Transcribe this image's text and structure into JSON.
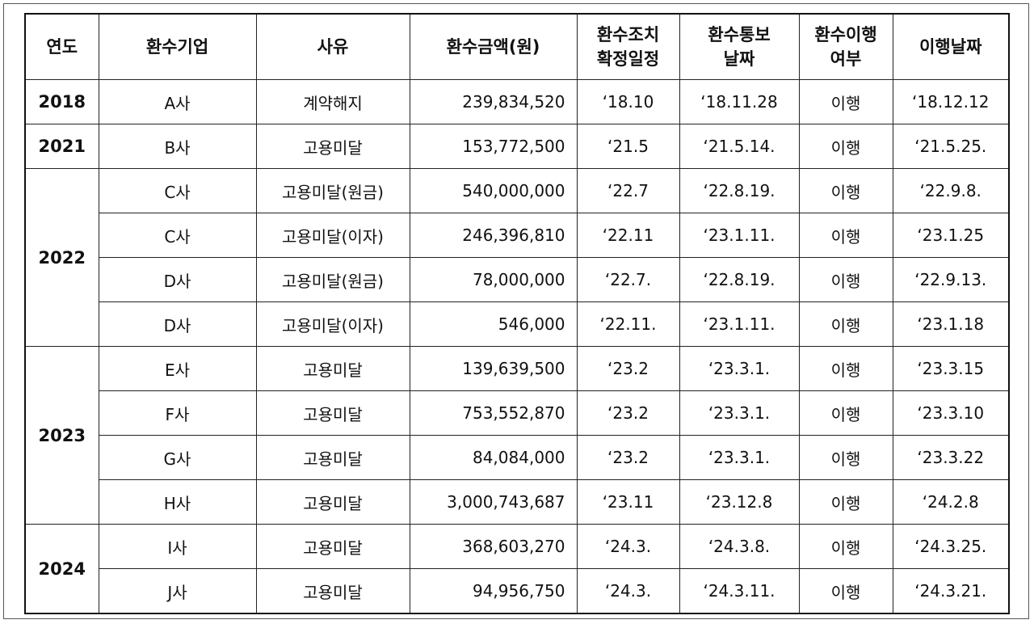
{
  "headers": [
    {
      "line1": "연도",
      "line2": ""
    },
    {
      "line1": "환수기업",
      "line2": ""
    },
    {
      "line1": "사유",
      "line2": ""
    },
    {
      "line1": "환수금액(원)",
      "line2": ""
    },
    {
      "line1": "환수조치",
      "line2": "확정일정"
    },
    {
      "line1": "환수통보",
      "line2": "날짜"
    },
    {
      "line1": "환수이행",
      "line2": "여부"
    },
    {
      "line1": "이행날짜",
      "line2": ""
    }
  ],
  "rows": [
    {
      "year": "2018",
      "company": "A사",
      "reason": "계약해지",
      "amount": "239,834,520",
      "confirm": "‘18.10",
      "notice": "‘18.11.28",
      "status": "이행",
      "done": "‘18.12.12"
    },
    {
      "year": "2021",
      "company": "B사",
      "reason": "고용미달",
      "amount": "153,772,500",
      "confirm": "‘21.5",
      "notice": "‘21.5.14.",
      "status": "이행",
      "done": "‘21.5.25."
    },
    {
      "year": "2022",
      "company": "C사",
      "reason": "고용미달(원금)",
      "amount": "540,000,000",
      "confirm": "‘22.7",
      "notice": "‘22.8.19.",
      "status": "이행",
      "done": "‘22.9.8."
    },
    {
      "year": "",
      "company": "C사",
      "reason": "고용미달(이자)",
      "amount": "246,396,810",
      "confirm": "‘22.11",
      "notice": "‘23.1.11.",
      "status": "이행",
      "done": "‘23.1.25"
    },
    {
      "year": "",
      "company": "D사",
      "reason": "고용미달(원금)",
      "amount": "78,000,000",
      "confirm": "‘22.7.",
      "notice": "‘22.8.19.",
      "status": "이행",
      "done": "‘22.9.13."
    },
    {
      "year": "",
      "company": "D사",
      "reason": "고용미달(이자)",
      "amount": "546,000",
      "confirm": "‘22.11.",
      "notice": "‘23.1.11.",
      "status": "이행",
      "done": "‘23.1.18"
    },
    {
      "year": "2023",
      "company": "E사",
      "reason": "고용미달",
      "amount": "139,639,500",
      "confirm": "‘23.2",
      "notice": "‘23.3.1.",
      "status": "이행",
      "done": "‘23.3.15"
    },
    {
      "year": "",
      "company": "F사",
      "reason": "고용미달",
      "amount": "753,552,870",
      "confirm": "‘23.2",
      "notice": "‘23.3.1.",
      "status": "이행",
      "done": "‘23.3.10"
    },
    {
      "year": "",
      "company": "G사",
      "reason": "고용미달",
      "amount": "84,084,000",
      "confirm": "‘23.2",
      "notice": "‘23.3.1.",
      "status": "이행",
      "done": "‘23.3.22"
    },
    {
      "year": "",
      "company": "H사",
      "reason": "고용미달",
      "amount": "3,000,743,687",
      "confirm": "‘23.11",
      "notice": "‘23.12.8",
      "status": "이행",
      "done": "‘24.2.8"
    },
    {
      "year": "2024",
      "company": "I사",
      "reason": "고용미달",
      "amount": "368,603,270",
      "confirm": "‘24.3.",
      "notice": "‘24.3.8.",
      "status": "이행",
      "done": "‘24.3.25."
    },
    {
      "year": "",
      "company": "J사",
      "reason": "고용미달",
      "amount": "94,956,750",
      "confirm": "‘24.3.",
      "notice": "‘24.3.11.",
      "status": "이행",
      "done": "‘24.3.21."
    }
  ]
}
